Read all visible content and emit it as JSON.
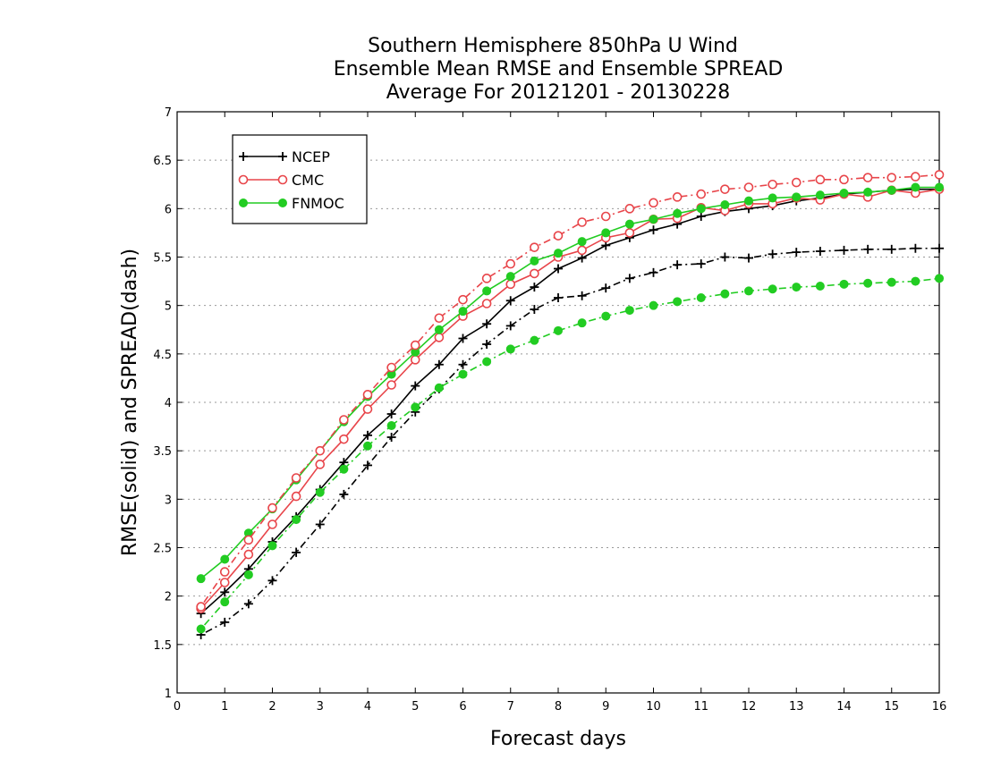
{
  "chart_data": {
    "type": "line",
    "title": [
      "Southern Hemisphere 850hPa U Wind",
      "Ensemble Mean RMSE and Ensemble SPREAD",
      "Average For 20121201 - 20130228"
    ],
    "xlabel": "Forecast days",
    "ylabel": "RMSE(solid) and SPREAD(dash)",
    "xlim": [
      0,
      16
    ],
    "ylim": [
      1,
      7
    ],
    "xticks": [
      "0",
      "1",
      "2",
      "3",
      "4",
      "5",
      "6",
      "7",
      "8",
      "9",
      "10",
      "11",
      "12",
      "13",
      "14",
      "15",
      "16"
    ],
    "yticks": [
      "1",
      "1.5",
      "2",
      "2.5",
      "3",
      "3.5",
      "4",
      "4.5",
      "5",
      "5.5",
      "6",
      "6.5",
      "7"
    ],
    "grid": true,
    "legend_position": "top-left",
    "x": [
      0.5,
      1,
      1.5,
      2,
      2.5,
      3,
      3.5,
      4,
      4.5,
      5,
      5.5,
      6,
      6.5,
      7,
      7.5,
      8,
      8.5,
      9,
      9.5,
      10,
      10.5,
      11,
      11.5,
      12,
      12.5,
      13,
      13.5,
      14,
      14.5,
      15,
      15.5,
      16
    ],
    "series": [
      {
        "name": "NCEP",
        "metric": "rmse",
        "color": "#000000",
        "marker": "plus",
        "linestyle": "solid",
        "values": [
          1.82,
          2.04,
          2.28,
          2.56,
          2.82,
          3.1,
          3.38,
          3.66,
          3.88,
          4.17,
          4.39,
          4.66,
          4.81,
          5.05,
          5.19,
          5.38,
          5.49,
          5.62,
          5.7,
          5.78,
          5.84,
          5.92,
          5.97,
          6.0,
          6.03,
          6.08,
          6.11,
          6.15,
          6.17,
          6.19,
          6.2,
          6.2
        ]
      },
      {
        "name": "CMC",
        "metric": "rmse",
        "color": "#e8454a",
        "marker": "circle",
        "linestyle": "solid",
        "values": [
          1.87,
          2.14,
          2.43,
          2.74,
          3.03,
          3.36,
          3.62,
          3.93,
          4.18,
          4.44,
          4.67,
          4.89,
          5.02,
          5.22,
          5.33,
          5.5,
          5.57,
          5.7,
          5.75,
          5.89,
          5.9,
          6.01,
          5.98,
          6.05,
          6.05,
          6.11,
          6.09,
          6.15,
          6.12,
          6.19,
          6.16,
          6.2
        ]
      },
      {
        "name": "FNMOC",
        "metric": "rmse",
        "color": "#22cc22",
        "marker": "dot",
        "linestyle": "solid",
        "values": [
          2.18,
          2.38,
          2.65,
          2.9,
          3.2,
          3.5,
          3.8,
          4.06,
          4.29,
          4.52,
          4.75,
          4.94,
          5.15,
          5.3,
          5.46,
          5.54,
          5.66,
          5.75,
          5.84,
          5.89,
          5.95,
          6.0,
          6.04,
          6.08,
          6.11,
          6.12,
          6.14,
          6.16,
          6.17,
          6.19,
          6.22,
          6.22
        ]
      },
      {
        "name": "NCEP",
        "metric": "spread",
        "color": "#000000",
        "marker": "plus",
        "linestyle": "dotdash",
        "values": [
          1.6,
          1.73,
          1.92,
          2.16,
          2.45,
          2.74,
          3.05,
          3.35,
          3.64,
          3.9,
          4.14,
          4.39,
          4.6,
          4.79,
          4.96,
          5.08,
          5.1,
          5.18,
          5.28,
          5.34,
          5.42,
          5.43,
          5.5,
          5.49,
          5.53,
          5.55,
          5.56,
          5.57,
          5.58,
          5.58,
          5.59,
          5.59
        ]
      },
      {
        "name": "CMC",
        "metric": "spread",
        "color": "#e8454a",
        "marker": "circle",
        "linestyle": "dotdash",
        "values": [
          1.89,
          2.25,
          2.58,
          2.91,
          3.22,
          3.5,
          3.82,
          4.08,
          4.36,
          4.59,
          4.87,
          5.06,
          5.28,
          5.43,
          5.6,
          5.72,
          5.86,
          5.92,
          6.0,
          6.06,
          6.12,
          6.15,
          6.2,
          6.22,
          6.25,
          6.27,
          6.3,
          6.3,
          6.32,
          6.32,
          6.33,
          6.35
        ]
      },
      {
        "name": "FNMOC",
        "metric": "spread",
        "color": "#22cc22",
        "marker": "dot",
        "linestyle": "dotdash",
        "values": [
          1.66,
          1.94,
          2.22,
          2.52,
          2.79,
          3.07,
          3.31,
          3.55,
          3.76,
          3.95,
          4.15,
          4.29,
          4.42,
          4.55,
          4.64,
          4.74,
          4.82,
          4.89,
          4.95,
          5.0,
          5.04,
          5.08,
          5.12,
          5.15,
          5.17,
          5.19,
          5.2,
          5.22,
          5.23,
          5.24,
          5.25,
          5.28
        ]
      }
    ],
    "legend": [
      {
        "label": "NCEP",
        "color": "#000000",
        "marker": "plus"
      },
      {
        "label": "CMC",
        "color": "#e8454a",
        "marker": "circle"
      },
      {
        "label": "FNMOC",
        "color": "#22cc22",
        "marker": "dot"
      }
    ]
  }
}
